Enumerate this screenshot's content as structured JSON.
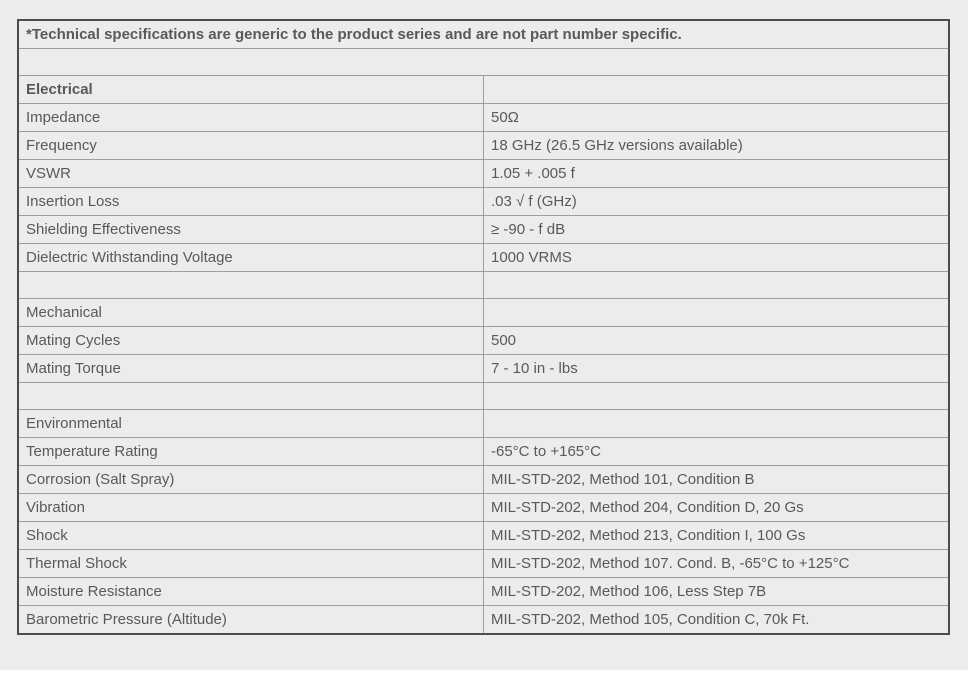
{
  "page": {
    "background_color": "#ececec",
    "bottom_strip_color": "#ffffff"
  },
  "table": {
    "note": "*Technical specifications are generic to the product series and are not part number specific.",
    "colors": {
      "row_background": "#ececec",
      "inner_border": "#9f9f9f",
      "outer_border": "#4c4c4e",
      "text": "#58595b"
    },
    "sections": [
      {
        "name": "Electrical",
        "bold": true,
        "rows": [
          {
            "label": "Impedance",
            "value": "50Ω"
          },
          {
            "label": "Frequency",
            "value": "18 GHz (26.5 GHz versions available)"
          },
          {
            "label": "VSWR",
            "value": "1.05 + .005 f"
          },
          {
            "label": "Insertion Loss",
            "value": ".03 √ f (GHz)"
          },
          {
            "label": "Shielding Effectiveness",
            "value": "≥ -90 - f dB"
          },
          {
            "label": "Dielectric Withstanding Voltage",
            "value": "1000 VRMS"
          }
        ]
      },
      {
        "name": "Mechanical",
        "bold": false,
        "rows": [
          {
            "label": "Mating Cycles",
            "value": "500"
          },
          {
            "label": "Mating Torque",
            "value": "7 - 10 in - lbs"
          }
        ]
      },
      {
        "name": "Environmental",
        "bold": false,
        "rows": [
          {
            "label": "Temperature Rating",
            "value": "-65°C to +165°C"
          },
          {
            "label": "Corrosion (Salt Spray)",
            "value": "MIL-STD-202, Method 101, Condition B"
          },
          {
            "label": "Vibration",
            "value": "MIL-STD-202, Method 204, Condition D, 20 Gs"
          },
          {
            "label": "Shock",
            "value": "MIL-STD-202, Method 213, Condition I, 100 Gs"
          },
          {
            "label": "Thermal Shock",
            "value": "MIL-STD-202, Method 107. Cond. B, -65°C to +125°C"
          },
          {
            "label": "Moisture Resistance",
            "value": "MIL-STD-202, Method 106, Less Step 7B"
          },
          {
            "label": "Barometric Pressure (Altitude)",
            "value": "MIL-STD-202, Method 105, Condition C, 70k Ft."
          }
        ]
      }
    ]
  }
}
